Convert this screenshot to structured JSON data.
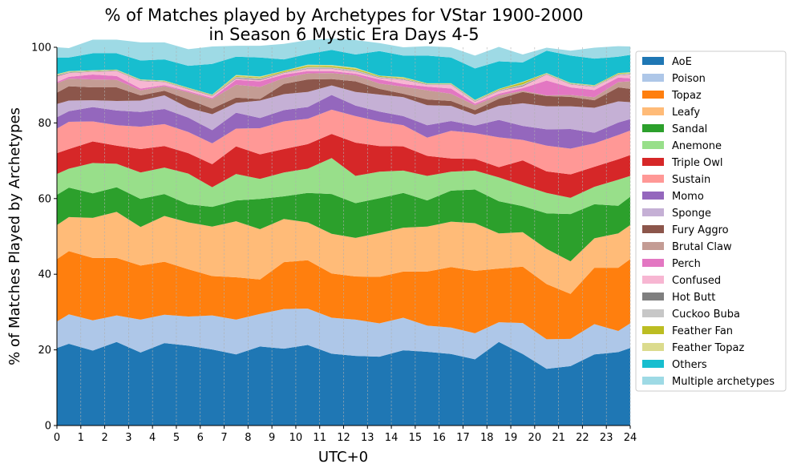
{
  "chart_data": {
    "type": "area",
    "title_line1": "% of Matches played by Archetypes for VStar 1900-2000",
    "title_line2": "in Season 6 Mystic Era Days 4-5",
    "xlabel": "UTC+0",
    "ylabel": "% of Matches Played by Archetypes",
    "xlim": [
      0,
      24
    ],
    "ylim": [
      0,
      100
    ],
    "x_ticks": [
      "0",
      "1",
      "2",
      "3",
      "4",
      "5",
      "6",
      "7",
      "8",
      "9",
      "10",
      "11",
      "12",
      "13",
      "14",
      "15",
      "16",
      "17",
      "18",
      "19",
      "20",
      "21",
      "22",
      "23",
      "24"
    ],
    "y_ticks": [
      "0",
      "20",
      "40",
      "60",
      "80",
      "100"
    ],
    "grid": "vertical dashed",
    "legend_position": "right",
    "x": [
      0,
      0.5,
      1.5,
      2.5,
      3.5,
      4.5,
      5.5,
      6.5,
      7.5,
      8.5,
      9.5,
      10.5,
      11.5,
      12.5,
      13.5,
      14.5,
      15.5,
      16.5,
      17.5,
      18.5,
      19.5,
      20.5,
      21.5,
      22.5,
      23.5,
      24
    ],
    "series": [
      {
        "name": "AoE",
        "color": "#1f77b4",
        "values": [
          20.5,
          21.6,
          19.8,
          22.1,
          19.3,
          21.8,
          21.1,
          20.1,
          18.8,
          20.9,
          20.3,
          21.3,
          19.0,
          18.4,
          18.2,
          19.9,
          19.5,
          18.9,
          17.5,
          22.1,
          18.9,
          15.0,
          15.7,
          18.8,
          19.4,
          20.5
        ]
      },
      {
        "name": "Poison",
        "color": "#aec7e8",
        "values": [
          7.0,
          7.8,
          8.0,
          7.0,
          8.7,
          7.5,
          7.7,
          9.0,
          9.2,
          8.6,
          10.5,
          9.6,
          9.5,
          9.6,
          8.8,
          8.6,
          6.9,
          7.0,
          6.9,
          5.2,
          8.2,
          7.8,
          7.2,
          8.0,
          5.6,
          6.5
        ]
      },
      {
        "name": "Topaz",
        "color": "#ff7f0e",
        "values": [
          16.5,
          16.7,
          16.5,
          15.2,
          14.3,
          14.0,
          12.5,
          10.4,
          11.2,
          9.1,
          12.4,
          12.8,
          11.7,
          11.4,
          12.3,
          12.2,
          14.3,
          16.0,
          16.5,
          14.2,
          14.9,
          14.6,
          11.9,
          14.9,
          16.7,
          17.0
        ]
      },
      {
        "name": "Leafy",
        "color": "#ffbb78",
        "values": [
          9.0,
          9.0,
          10.6,
          12.2,
          10.2,
          12.1,
          12.4,
          13.1,
          14.8,
          13.3,
          11.4,
          10.0,
          10.5,
          10.2,
          11.6,
          11.6,
          11.9,
          12.0,
          12.6,
          9.3,
          9.1,
          9.3,
          8.6,
          7.8,
          9.1,
          9.0
        ]
      },
      {
        "name": "Sandal",
        "color": "#2ca02c",
        "values": [
          8.0,
          7.8,
          6.5,
          6.5,
          7.4,
          5.8,
          4.8,
          5.2,
          5.5,
          8.0,
          6.0,
          7.8,
          10.5,
          9.2,
          9.2,
          9.2,
          6.9,
          8.2,
          8.9,
          8.5,
          6.9,
          9.4,
          12.5,
          9.0,
          7.3,
          7.5
        ]
      },
      {
        "name": "Anemone",
        "color": "#98df8a",
        "values": [
          5.5,
          5.0,
          8.0,
          6.2,
          7.0,
          7.0,
          8.1,
          5.2,
          7.0,
          5.3,
          6.3,
          6.4,
          9.5,
          7.2,
          7.0,
          5.9,
          6.5,
          5.0,
          5.0,
          6.3,
          5.5,
          5.4,
          4.3,
          4.6,
          6.9,
          5.5
        ]
      },
      {
        "name": "Triple Owl",
        "color": "#d62728",
        "values": [
          5.5,
          5.2,
          5.7,
          4.8,
          6.2,
          5.7,
          5.4,
          6.1,
          7.3,
          6.5,
          6.2,
          6.5,
          6.4,
          8.8,
          6.8,
          6.4,
          5.3,
          3.5,
          3.1,
          2.7,
          6.6,
          5.7,
          6.2,
          5.3,
          5.4,
          5.5
        ]
      },
      {
        "name": "Sustain",
        "color": "#ff9896",
        "values": [
          6.5,
          7.2,
          5.3,
          5.4,
          5.9,
          5.8,
          5.6,
          5.5,
          4.7,
          6.9,
          7.3,
          6.7,
          6.4,
          7.0,
          6.5,
          5.6,
          4.8,
          7.3,
          6.8,
          7.9,
          5.4,
          6.8,
          6.8,
          6.2,
          6.4,
          6.5
        ]
      },
      {
        "name": "Momo",
        "color": "#9467bd",
        "values": [
          3.0,
          2.8,
          3.8,
          3.9,
          3.9,
          4.0,
          3.8,
          3.5,
          4.2,
          2.7,
          3.0,
          3.1,
          3.9,
          2.8,
          2.6,
          2.4,
          3.3,
          2.6,
          2.0,
          4.6,
          3.7,
          4.3,
          5.2,
          2.8,
          3.3,
          3.0
        ]
      },
      {
        "name": "Sponge",
        "color": "#c5b0d5",
        "values": [
          3.5,
          2.8,
          1.8,
          2.5,
          3.0,
          3.6,
          2.6,
          4.2,
          2.6,
          4.6,
          4.2,
          4.0,
          2.5,
          3.6,
          4.5,
          5.0,
          5.3,
          4.0,
          2.9,
          3.7,
          6.0,
          6.1,
          6.0,
          6.6,
          5.6,
          4.5
        ]
      },
      {
        "name": "Fury Aggro",
        "color": "#8c564b",
        "values": [
          3.0,
          3.8,
          3.4,
          3.6,
          1.4,
          1.2,
          2.2,
          1.5,
          1.4,
          0.4,
          2.7,
          3.3,
          1.7,
          2.8,
          1.5,
          0.9,
          1.5,
          1.3,
          1.2,
          1.9,
          3.0,
          2.7,
          2.5,
          2.0,
          3.7,
          3.5
        ]
      },
      {
        "name": "Brutal Claw",
        "color": "#c49c94",
        "values": [
          2.5,
          2.0,
          2.1,
          2.0,
          1.3,
          1.2,
          1.9,
          2.5,
          3.4,
          3.2,
          1.6,
          1.6,
          1.6,
          1.6,
          1.4,
          1.9,
          2.4,
          1.9,
          1.3,
          0.9,
          0.3,
          0.2,
          0.5,
          0.8,
          1.4,
          2.0
        ]
      },
      {
        "name": "Perch",
        "color": "#e377c2",
        "values": [
          0.3,
          0.5,
          1.3,
          1.0,
          0.5,
          0.3,
          0.3,
          0.3,
          1.3,
          1.5,
          0.9,
          0.6,
          0.5,
          0.4,
          1.1,
          0.7,
          1.0,
          1.4,
          0.4,
          0.4,
          0.7,
          3.9,
          2.0,
          1.9,
          1.2,
          0.8
        ]
      },
      {
        "name": "Confused",
        "color": "#f7b6d2",
        "values": [
          1.5,
          1.0,
          0.7,
          1.3,
          2.0,
          0.8,
          0.5,
          0.5,
          0.3,
          0.3,
          0.4,
          0.6,
          0.6,
          0.6,
          0.4,
          1.1,
          0.5,
          1.0,
          0.5,
          0.7,
          0.5,
          1.6,
          0.8,
          0.8,
          0.6,
          1.0
        ]
      },
      {
        "name": "Hot Butt",
        "color": "#7f7f7f",
        "values": [
          0.2,
          0.1,
          0.1,
          0.1,
          0.1,
          0.1,
          0.1,
          0.1,
          0.2,
          0.2,
          0.1,
          0.1,
          0.1,
          0.1,
          0.1,
          0.1,
          0.1,
          0.1,
          0.1,
          0.1,
          0.2,
          0.1,
          0.1,
          0.1,
          0.1,
          0.1
        ]
      },
      {
        "name": "Cuckoo Buba",
        "color": "#c7c7c7",
        "values": [
          0.2,
          0.2,
          0.1,
          0.1,
          0.1,
          0.1,
          0.1,
          0.1,
          0.3,
          0.3,
          0.1,
          0.4,
          0.3,
          0.3,
          0.2,
          0.2,
          0.1,
          0.1,
          0.2,
          0.2,
          0.3,
          0.1,
          0.1,
          0.2,
          0.2,
          0.2
        ]
      },
      {
        "name": "Feather Fan",
        "color": "#bcbd22",
        "values": [
          0.1,
          0.1,
          0.1,
          0.1,
          0.1,
          0.1,
          0.1,
          0.1,
          0.2,
          0.2,
          0.3,
          0.3,
          0.3,
          0.3,
          0.2,
          0.2,
          0.1,
          0.1,
          0.1,
          0.2,
          0.5,
          0.1,
          0.1,
          0.1,
          0.2,
          0.1
        ]
      },
      {
        "name": "Feather Topaz",
        "color": "#dbdb8d",
        "values": [
          0.1,
          0.1,
          0.1,
          0.1,
          0.1,
          0.1,
          0.1,
          0.1,
          0.3,
          0.3,
          0.1,
          0.3,
          0.3,
          0.3,
          0.1,
          0.2,
          0.1,
          0.1,
          0.1,
          0.1,
          0.2,
          0.1,
          0.1,
          0.1,
          0.1,
          0.2
        ]
      },
      {
        "name": "Others",
        "color": "#17becf",
        "values": [
          4.4,
          3.6,
          4.5,
          4.3,
          5.0,
          5.6,
          5.8,
          8.1,
          4.8,
          5.0,
          3.0,
          2.8,
          4.0,
          3.5,
          6.5,
          5.7,
          7.3,
          6.8,
          8.3,
          7.3,
          5.1,
          5.9,
          7.2,
          7.0,
          4.3,
          4.6
        ]
      },
      {
        "name": "Multiple archetypes",
        "color": "#9edae5",
        "values": [
          2.7,
          2.5,
          3.6,
          3.6,
          4.8,
          4.5,
          4.4,
          4.6,
          2.9,
          3.1,
          4.1,
          3.7,
          3.0,
          3.8,
          2.1,
          2.2,
          2.5,
          2.7,
          3.4,
          3.8,
          2.1,
          0.8,
          1.3,
          2.9,
          2.8,
          2.2
        ]
      }
    ]
  }
}
